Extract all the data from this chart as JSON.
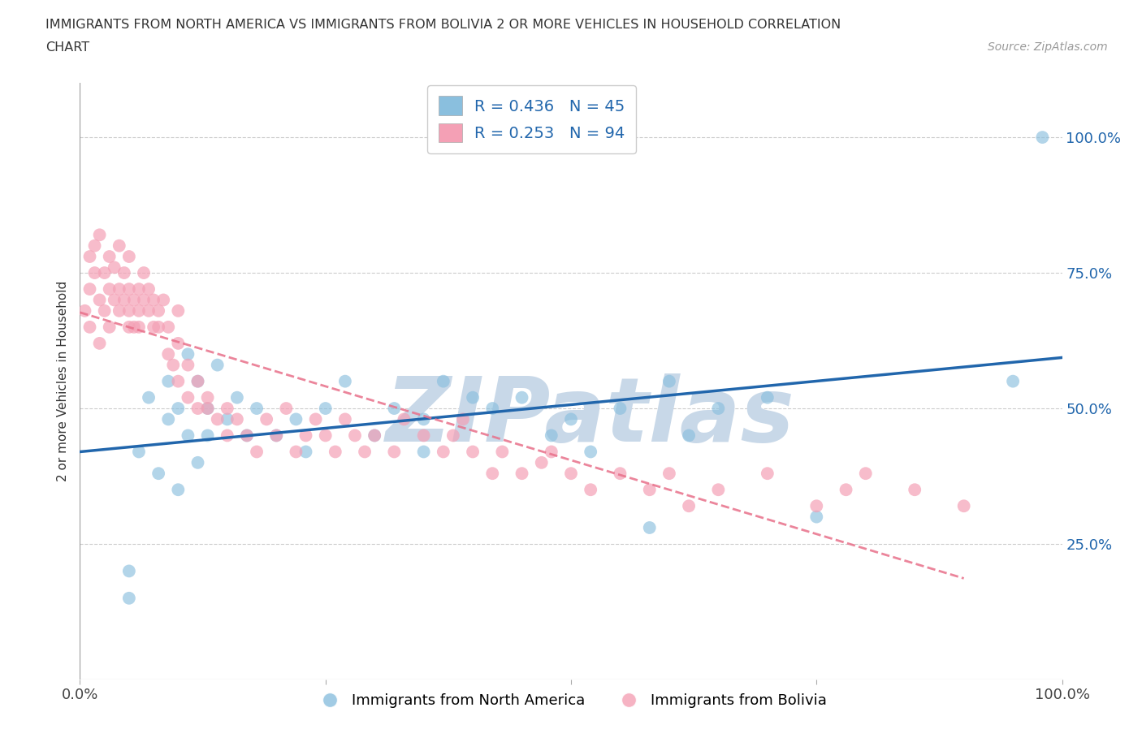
{
  "title_line1": "IMMIGRANTS FROM NORTH AMERICA VS IMMIGRANTS FROM BOLIVIA 2 OR MORE VEHICLES IN HOUSEHOLD CORRELATION",
  "title_line2": "CHART",
  "source_text": "Source: ZipAtlas.com",
  "ylabel": "2 or more Vehicles in Household",
  "xlim": [
    0,
    100
  ],
  "ylim": [
    0,
    110
  ],
  "yticks": [
    0,
    25,
    50,
    75,
    100
  ],
  "xticks": [
    0,
    25,
    50,
    75,
    100
  ],
  "blue_color": "#8abfde",
  "pink_color": "#f4a0b5",
  "blue_line_color": "#2166ac",
  "pink_line_color": "#e8708a",
  "R_blue": 0.436,
  "N_blue": 45,
  "R_pink": 0.253,
  "N_pink": 94,
  "legend_R_color": "#2166ac",
  "watermark": "ZIPatlas",
  "watermark_color": "#c8d8e8",
  "blue_scatter_x": [
    5,
    5,
    6,
    7,
    8,
    9,
    9,
    10,
    10,
    11,
    11,
    12,
    12,
    13,
    13,
    14,
    15,
    16,
    17,
    18,
    20,
    22,
    23,
    25,
    27,
    30,
    32,
    35,
    35,
    37,
    40,
    42,
    45,
    48,
    50,
    52,
    55,
    58,
    60,
    62,
    65,
    70,
    75,
    95,
    98
  ],
  "blue_scatter_y": [
    20,
    15,
    42,
    52,
    38,
    48,
    55,
    35,
    50,
    45,
    60,
    40,
    55,
    50,
    45,
    58,
    48,
    52,
    45,
    50,
    45,
    48,
    42,
    50,
    55,
    45,
    50,
    48,
    42,
    55,
    52,
    50,
    52,
    45,
    48,
    42,
    50,
    28,
    55,
    45,
    50,
    52,
    30,
    55,
    100
  ],
  "pink_scatter_x": [
    0.5,
    1,
    1,
    1,
    1.5,
    1.5,
    2,
    2,
    2,
    2.5,
    2.5,
    3,
    3,
    3,
    3.5,
    3.5,
    4,
    4,
    4,
    4.5,
    4.5,
    5,
    5,
    5,
    5,
    5.5,
    5.5,
    6,
    6,
    6,
    6.5,
    6.5,
    7,
    7,
    7.5,
    7.5,
    8,
    8,
    8.5,
    9,
    9,
    9.5,
    10,
    10,
    10,
    11,
    11,
    12,
    12,
    13,
    13,
    14,
    15,
    15,
    16,
    17,
    18,
    19,
    20,
    21,
    22,
    23,
    24,
    25,
    26,
    27,
    28,
    29,
    30,
    32,
    33,
    35,
    37,
    38,
    39,
    40,
    42,
    43,
    45,
    47,
    48,
    50,
    52,
    55,
    58,
    60,
    62,
    65,
    70,
    75,
    78,
    80,
    85,
    90
  ],
  "pink_scatter_y": [
    68,
    72,
    78,
    65,
    80,
    75,
    70,
    82,
    62,
    68,
    75,
    72,
    65,
    78,
    70,
    76,
    80,
    72,
    68,
    75,
    70,
    68,
    72,
    65,
    78,
    70,
    65,
    68,
    72,
    65,
    75,
    70,
    68,
    72,
    65,
    70,
    68,
    65,
    70,
    60,
    65,
    58,
    62,
    68,
    55,
    52,
    58,
    50,
    55,
    52,
    50,
    48,
    45,
    50,
    48,
    45,
    42,
    48,
    45,
    50,
    42,
    45,
    48,
    45,
    42,
    48,
    45,
    42,
    45,
    42,
    48,
    45,
    42,
    45,
    48,
    42,
    38,
    42,
    38,
    40,
    42,
    38,
    35,
    38,
    35,
    38,
    32,
    35,
    38,
    32,
    35,
    38,
    35,
    32
  ]
}
